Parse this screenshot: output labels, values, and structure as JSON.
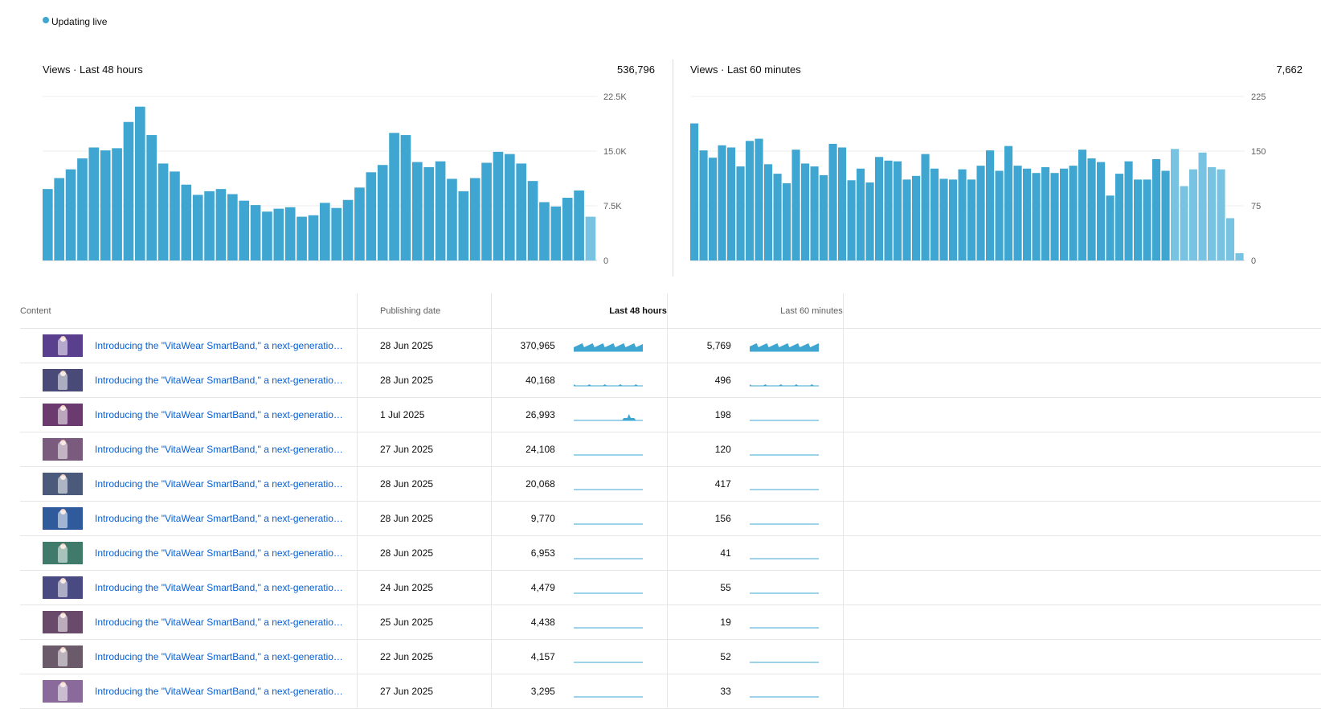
{
  "status": {
    "label": "Updating live"
  },
  "charts": [
    {
      "title": "Views · Last 48 hours",
      "total": "536,796",
      "color": "#3ea6d1",
      "color_current": "#78c3e1",
      "chart_data": {
        "type": "bar",
        "ylim": [
          0,
          22500
        ],
        "yticks": [
          "0",
          "7.5K",
          "15.0K",
          "22.5K"
        ],
        "ytick_values": [
          0,
          7500,
          15000,
          22500
        ],
        "grid": true,
        "values": [
          9800,
          11300,
          12500,
          14000,
          15500,
          15100,
          15400,
          19000,
          21100,
          17200,
          13300,
          12200,
          10400,
          9000,
          9500,
          9800,
          9100,
          8200,
          7600,
          6700,
          7100,
          7300,
          6000,
          6200,
          7900,
          7200,
          8300,
          10000,
          12100,
          13100,
          17500,
          17200,
          13500,
          12800,
          13600,
          11200,
          9500,
          11300,
          13400,
          14900,
          14600,
          13300,
          10900,
          8000,
          7400,
          8600,
          9600,
          6000
        ]
      }
    },
    {
      "title": "Views · Last 60 minutes",
      "total": "7,662",
      "color": "#3ea6d1",
      "color_current": "#78c3e1",
      "chart_data": {
        "type": "bar",
        "ylim": [
          0,
          225
        ],
        "yticks": [
          "0",
          "75",
          "150",
          "225"
        ],
        "ytick_values": [
          0,
          75,
          150,
          225
        ],
        "grid": true,
        "values": [
          188,
          151,
          141,
          158,
          155,
          129,
          164,
          167,
          132,
          119,
          106,
          152,
          133,
          129,
          117,
          160,
          155,
          110,
          126,
          107,
          142,
          137,
          136,
          111,
          116,
          146,
          126,
          112,
          111,
          125,
          111,
          130,
          151,
          123,
          157,
          130,
          126,
          120,
          128,
          120,
          126,
          130,
          152,
          140,
          135,
          89,
          119,
          136,
          111,
          111,
          139,
          123,
          153,
          102,
          125,
          148,
          128,
          125,
          58,
          10
        ]
      }
    }
  ],
  "table": {
    "headers": {
      "content": "Content",
      "date": "Publishing date",
      "h48": "Last 48 hours",
      "m60": "Last 60 minutes"
    },
    "rows": [
      {
        "title": "Introducing the \"VitaWear SmartBand,\" a next-generation wearable",
        "date": "28 Jun 2025",
        "h48": "370,965",
        "m60": "5,769",
        "thumb_color": "#5b3f8f"
      },
      {
        "title": "Introducing the \"VitaWear SmartBand,\" a next-generation wearable",
        "date": "28 Jun 2025",
        "h48": "40,168",
        "m60": "496",
        "thumb_color": "#4a4a78"
      },
      {
        "title": "Introducing the \"VitaWear SmartBand,\" a next-generation wearable",
        "date": "1 Jul 2025",
        "h48": "26,993",
        "m60": "198",
        "thumb_color": "#6b3a6e"
      },
      {
        "title": "Introducing the \"VitaWear SmartBand,\" a next-generation wearable",
        "date": "27 Jun 2025",
        "h48": "24,108",
        "m60": "120",
        "thumb_color": "#7a5a7d"
      },
      {
        "title": "Introducing the \"VitaWear SmartBand,\" a next-generation wearable",
        "date": "28 Jun 2025",
        "h48": "20,068",
        "m60": "417",
        "thumb_color": "#4b5a7a"
      },
      {
        "title": "Introducing the \"VitaWear SmartBand,\" a next-generation wearable",
        "date": "28 Jun 2025",
        "h48": "9,770",
        "m60": "156",
        "thumb_color": "#2f5a9c"
      },
      {
        "title": "Introducing the \"VitaWear SmartBand,\" a next-generation wearable",
        "date": "28 Jun 2025",
        "h48": "6,953",
        "m60": "41",
        "thumb_color": "#3f7a6a"
      },
      {
        "title": "Introducing the \"VitaWear SmartBand,\" a next-generation wearable",
        "date": "24 Jun 2025",
        "h48": "4,479",
        "m60": "55",
        "thumb_color": "#4a4a82"
      },
      {
        "title": "Introducing the \"VitaWear SmartBand,\" a next-generation wearable",
        "date": "25 Jun 2025",
        "h48": "4,438",
        "m60": "19",
        "thumb_color": "#6a4a6a"
      },
      {
        "title": "Introducing the \"VitaWear SmartBand,\" a next-generation wearable",
        "date": "22 Jun 2025",
        "h48": "4,157",
        "m60": "52",
        "thumb_color": "#6a5a6a"
      },
      {
        "title": "Introducing the \"VitaWear SmartBand,\" a next-generation wearable",
        "date": "27 Jun 2025",
        "h48": "3,295",
        "m60": "33",
        "thumb_color": "#8a6a9a"
      }
    ]
  }
}
